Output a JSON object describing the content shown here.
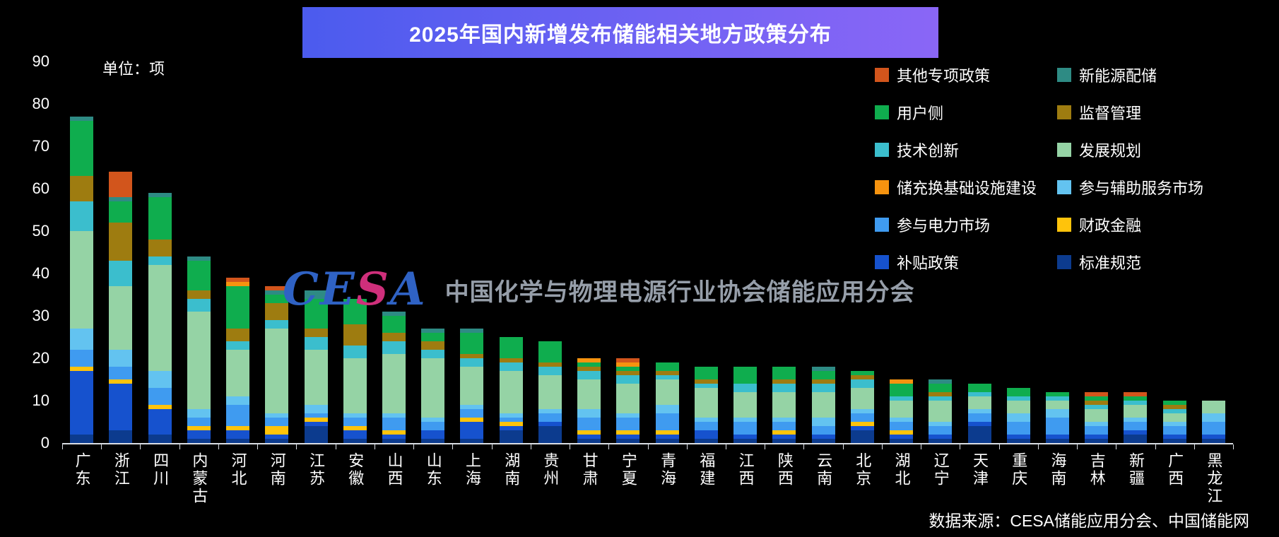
{
  "title": "2025年国内新增发布储能相关地方政策分布",
  "unit_label": "单位：项",
  "source_note": "数据来源：CESA储能应用分会、中国储能网",
  "watermark": {
    "letters": [
      "C",
      "E",
      "S",
      "A"
    ],
    "letter_colors": [
      "#2f62c4",
      "#2f62c4",
      "#cf2f7b",
      "#2f62c4"
    ],
    "text": "中国化学与物理电源行业协会储能应用分会"
  },
  "colors": {
    "background": "#000000",
    "banner_gradient_start": "#4b5bee",
    "banner_gradient_end": "#8a66f6",
    "axis": "#d9dde3",
    "text": "#ffffff"
  },
  "chart_data": {
    "type": "bar",
    "stacked": true,
    "title": "2025年国内新增发布储能相关地方政策分布",
    "ylabel": "单位：项",
    "xlabel": "",
    "ylim": [
      0,
      90
    ],
    "yticks": [
      0,
      10,
      20,
      30,
      40,
      50,
      60,
      70,
      80,
      90
    ],
    "grid": false,
    "legend_position": "top-right",
    "categories": [
      "广东",
      "浙江",
      "四川",
      "内蒙古",
      "河北",
      "河南",
      "江苏",
      "安徽",
      "山西",
      "山东",
      "上海",
      "湖南",
      "贵州",
      "甘肃",
      "宁夏",
      "青海",
      "福建",
      "江西",
      "陕西",
      "云南",
      "北京",
      "湖北",
      "辽宁",
      "天津",
      "重庆",
      "海南",
      "吉林",
      "新疆",
      "广西",
      "黑龙江"
    ],
    "series": [
      {
        "name": "标准规范",
        "color": "#0C3B8E",
        "values": [
          2,
          3,
          2,
          1,
          1,
          1,
          4,
          1,
          1,
          1,
          1,
          3,
          4,
          1,
          1,
          1,
          1,
          1,
          1,
          1,
          3,
          1,
          1,
          4,
          1,
          1,
          1,
          2,
          1,
          1
        ]
      },
      {
        "name": "补贴政策",
        "color": "#1652CE",
        "values": [
          15,
          11,
          6,
          2,
          2,
          1,
          1,
          2,
          1,
          2,
          4,
          1,
          1,
          1,
          1,
          1,
          2,
          1,
          1,
          1,
          1,
          1,
          1,
          1,
          1,
          1,
          1,
          1,
          1,
          1
        ]
      },
      {
        "name": "财政金融",
        "color": "#FFC30B",
        "values": [
          1,
          1,
          1,
          1,
          1,
          2,
          1,
          1,
          1,
          0,
          1,
          1,
          0,
          1,
          1,
          1,
          0,
          0,
          1,
          0,
          1,
          1,
          0,
          0,
          0,
          0,
          0,
          0,
          0,
          0
        ]
      },
      {
        "name": "参与电力市场",
        "color": "#3F9BF0",
        "values": [
          4,
          3,
          4,
          2,
          5,
          2,
          1,
          2,
          3,
          2,
          2,
          1,
          2,
          3,
          3,
          4,
          2,
          3,
          2,
          2,
          2,
          2,
          2,
          2,
          3,
          4,
          2,
          2,
          2,
          3
        ]
      },
      {
        "name": "参与辅助服务市场",
        "color": "#63C3F0",
        "values": [
          5,
          4,
          4,
          2,
          2,
          1,
          2,
          1,
          1,
          1,
          1,
          1,
          1,
          2,
          1,
          2,
          1,
          1,
          1,
          2,
          1,
          1,
          1,
          1,
          2,
          2,
          1,
          1,
          1,
          2
        ]
      },
      {
        "name": "发展规划",
        "color": "#95D3A5",
        "values": [
          23,
          15,
          25,
          23,
          11,
          20,
          13,
          13,
          14,
          14,
          9,
          10,
          8,
          7,
          7,
          6,
          7,
          6,
          6,
          6,
          5,
          4,
          5,
          3,
          3,
          2,
          3,
          3,
          2,
          3
        ]
      },
      {
        "name": "技术创新",
        "color": "#3BBECD",
        "values": [
          7,
          6,
          2,
          3,
          2,
          2,
          3,
          3,
          3,
          2,
          2,
          2,
          2,
          2,
          2,
          1,
          1,
          2,
          2,
          2,
          2,
          1,
          1,
          1,
          1,
          1,
          1,
          1,
          1,
          0
        ]
      },
      {
        "name": "监督管理",
        "color": "#9E7C10",
        "values": [
          6,
          9,
          4,
          2,
          3,
          4,
          2,
          5,
          2,
          2,
          1,
          1,
          1,
          1,
          1,
          1,
          1,
          0,
          1,
          1,
          1,
          0,
          1,
          0,
          0,
          0,
          1,
          0,
          1,
          0
        ]
      },
      {
        "name": "用户侧",
        "color": "#0FAD4E",
        "values": [
          13,
          5,
          10,
          7,
          10,
          2,
          7,
          6,
          4,
          2,
          5,
          5,
          5,
          1,
          1,
          2,
          3,
          4,
          3,
          2,
          1,
          3,
          2,
          2,
          2,
          1,
          1,
          1,
          1,
          0
        ]
      },
      {
        "name": "新能源配储",
        "color": "#2E8B84",
        "values": [
          1,
          1,
          1,
          1,
          0,
          1,
          2,
          0,
          1,
          1,
          1,
          0,
          0,
          0,
          0,
          0,
          0,
          0,
          0,
          1,
          0,
          0,
          1,
          0,
          0,
          0,
          0,
          0,
          0,
          0
        ]
      },
      {
        "name": "储充换基础设施建设",
        "color": "#F6930F",
        "values": [
          0,
          0,
          0,
          0,
          1,
          0,
          0,
          0,
          0,
          0,
          0,
          0,
          0,
          1,
          1,
          0,
          0,
          0,
          0,
          0,
          0,
          1,
          0,
          0,
          0,
          0,
          0,
          0,
          0,
          0
        ]
      },
      {
        "name": "其他专项政策",
        "color": "#D2551C",
        "values": [
          0,
          6,
          0,
          0,
          1,
          1,
          0,
          0,
          0,
          0,
          0,
          0,
          0,
          0,
          1,
          0,
          0,
          0,
          0,
          0,
          0,
          0,
          0,
          0,
          0,
          0,
          1,
          1,
          0,
          0
        ]
      }
    ],
    "legend_columns": [
      [
        "其他专项政策",
        "用户侧",
        "技术创新",
        "储充换基础设施建设",
        "参与电力市场",
        "补贴政策"
      ],
      [
        "新能源配储",
        "监督管理",
        "发展规划",
        "参与辅助服务市场",
        "财政金融",
        "标准规范"
      ]
    ]
  }
}
